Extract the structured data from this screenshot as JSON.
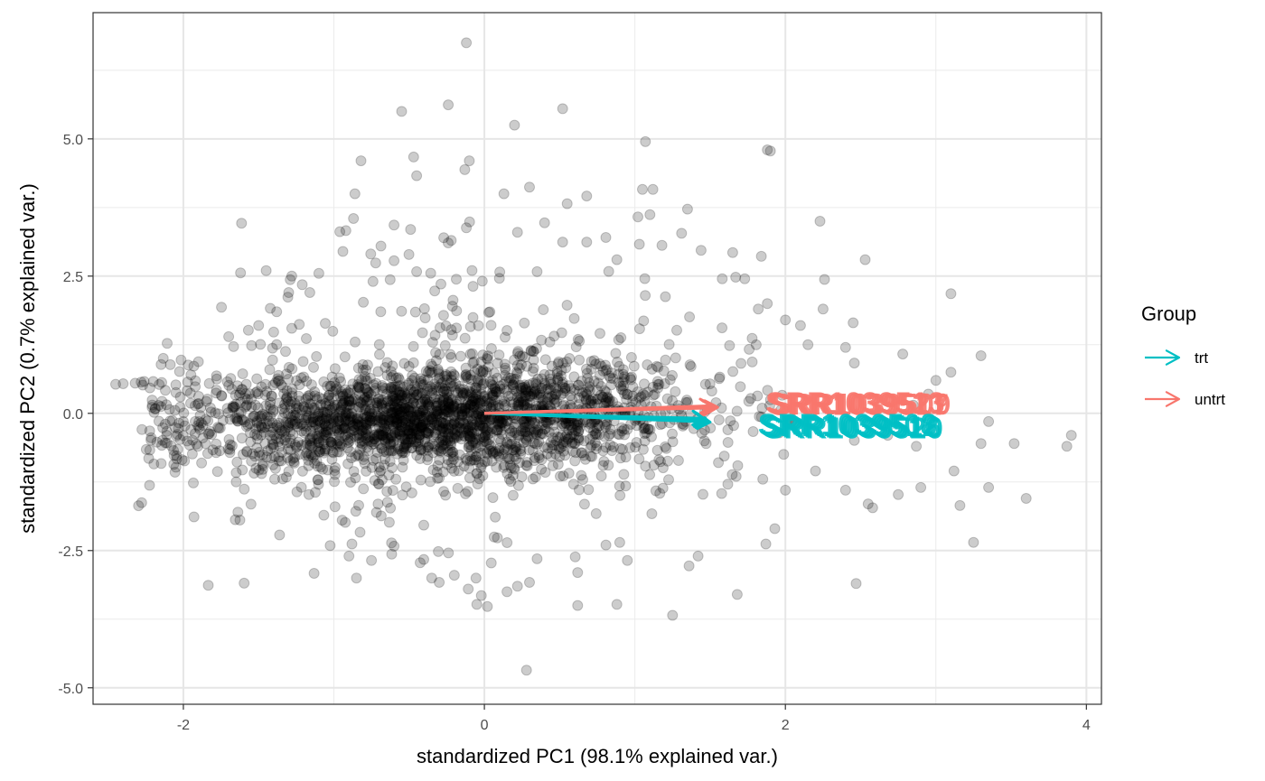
{
  "chart_data": {
    "type": "scatter",
    "subtype": "pca-biplot",
    "xlabel": "standardized PC1 (98.1% explained var.)",
    "ylabel": "standardized PC2 (0.7% explained var.)",
    "xlim": [
      -2.6,
      4.1
    ],
    "ylim": [
      -5.3,
      7.3
    ],
    "x_ticks": [
      -2,
      0,
      2,
      4
    ],
    "x_tick_labels": [
      "-2",
      "0",
      "2",
      "4"
    ],
    "y_ticks": [
      -5,
      -2.5,
      0,
      2.5,
      5
    ],
    "y_tick_labels": [
      "-5.0",
      "-2.5",
      "0.0",
      "2.5",
      "5.0"
    ],
    "grid": true,
    "legend": {
      "title": "Group",
      "placement": "right",
      "entries": [
        {
          "label": "trt",
          "color": "#00BFC4"
        },
        {
          "label": "untrt",
          "color": "#F8766D"
        }
      ]
    },
    "point_style": {
      "color": "#000000",
      "alpha": 0.2
    },
    "arrows": [
      {
        "group": "untrt",
        "label": "SRR1039513",
        "x": 1.52,
        "y": 0.14
      },
      {
        "group": "untrt",
        "label": "SRR1039521",
        "x": 1.53,
        "y": 0.12
      },
      {
        "group": "untrt",
        "label": "SRR1039517",
        "x": 1.54,
        "y": 0.1
      },
      {
        "group": "untrt",
        "label": "SRR1039509",
        "x": 1.55,
        "y": 0.11
      },
      {
        "group": "trt",
        "label": "SRR1039508",
        "x": 1.47,
        "y": -0.09
      },
      {
        "group": "trt",
        "label": "SRR1039512",
        "x": 1.48,
        "y": -0.12
      },
      {
        "group": "trt",
        "label": "SRR1039516",
        "x": 1.49,
        "y": -0.14
      },
      {
        "group": "trt",
        "label": "SRR1039520",
        "x": 1.5,
        "y": -0.16
      }
    ],
    "outlier_points": [
      [
        -0.12,
        6.75
      ],
      [
        -0.55,
        5.5
      ],
      [
        -0.24,
        5.62
      ],
      [
        0.2,
        5.25
      ],
      [
        0.52,
        5.55
      ],
      [
        1.07,
        4.95
      ],
      [
        1.88,
        4.8
      ],
      [
        1.9,
        4.78
      ],
      [
        -0.82,
        4.6
      ],
      [
        -0.47,
        4.67
      ],
      [
        -0.1,
        4.6
      ],
      [
        -0.45,
        4.33
      ],
      [
        -0.13,
        4.44
      ],
      [
        0.3,
        4.12
      ],
      [
        0.13,
        4.0
      ],
      [
        1.05,
        4.08
      ],
      [
        1.12,
        4.08
      ],
      [
        0.68,
        3.96
      ],
      [
        0.55,
        3.82
      ],
      [
        -0.86,
        4.0
      ],
      [
        -0.87,
        3.55
      ],
      [
        1.02,
        3.58
      ],
      [
        1.35,
        3.72
      ],
      [
        1.1,
        3.62
      ],
      [
        2.23,
        3.5
      ],
      [
        -0.6,
        3.43
      ],
      [
        -0.92,
        3.33
      ],
      [
        0.4,
        3.47
      ],
      [
        -0.12,
        3.38
      ],
      [
        0.22,
        3.3
      ],
      [
        -0.27,
        3.2
      ],
      [
        -0.22,
        3.15
      ],
      [
        0.52,
        3.12
      ],
      [
        0.68,
        3.12
      ],
      [
        1.31,
        3.28
      ],
      [
        1.03,
        3.08
      ],
      [
        1.18,
        3.06
      ],
      [
        1.84,
        2.86
      ],
      [
        2.53,
        2.8
      ],
      [
        0.88,
        2.8
      ],
      [
        1.65,
        2.93
      ],
      [
        1.44,
        2.97
      ],
      [
        2.26,
        2.44
      ],
      [
        -1.3,
        2.2
      ],
      [
        -1.16,
        2.2
      ],
      [
        3.1,
        2.18
      ],
      [
        0.1,
        2.46
      ],
      [
        0.35,
        2.58
      ],
      [
        -0.45,
        2.58
      ],
      [
        -0.6,
        2.78
      ],
      [
        -1.1,
        2.55
      ],
      [
        -1.28,
        2.5
      ],
      [
        -1.62,
        2.56
      ],
      [
        -1.45,
        2.6
      ],
      [
        -1.38,
        1.85
      ],
      [
        -1.23,
        1.62
      ],
      [
        -1.28,
        1.55
      ],
      [
        -1.5,
        1.6
      ],
      [
        -1.4,
        1.48
      ],
      [
        -2.45,
        0.53
      ],
      [
        -2.4,
        0.54
      ],
      [
        -2.32,
        0.55
      ],
      [
        -2.26,
        0.58
      ],
      [
        -2.2,
        0.58
      ],
      [
        -2.12,
        0.42
      ],
      [
        -2.05,
        0.52
      ],
      [
        -2.02,
        0.3
      ],
      [
        -1.95,
        0.7
      ],
      [
        -1.9,
        0.94
      ],
      [
        -2.0,
        -0.15
      ],
      [
        -1.95,
        -0.3
      ],
      [
        3.3,
        1.05
      ],
      [
        3.1,
        0.75
      ],
      [
        3.0,
        0.6
      ],
      [
        3.35,
        -0.15
      ],
      [
        3.52,
        -0.55
      ],
      [
        3.87,
        -0.6
      ],
      [
        3.9,
        -0.4
      ],
      [
        3.3,
        -0.55
      ],
      [
        3.12,
        -1.05
      ],
      [
        3.16,
        -1.68
      ],
      [
        3.25,
        -2.35
      ],
      [
        3.35,
        -1.35
      ],
      [
        3.6,
        -1.55
      ],
      [
        2.9,
        -1.35
      ],
      [
        2.75,
        -1.48
      ],
      [
        2.58,
        -1.72
      ],
      [
        2.55,
        -1.65
      ],
      [
        2.47,
        -3.1
      ],
      [
        2.4,
        -1.4
      ],
      [
        2.2,
        -1.05
      ],
      [
        2.0,
        -1.4
      ],
      [
        1.93,
        -2.1
      ],
      [
        1.87,
        -2.38
      ],
      [
        1.68,
        -3.3
      ],
      [
        1.42,
        -2.6
      ],
      [
        1.36,
        -2.78
      ],
      [
        1.25,
        -3.68
      ],
      [
        0.28,
        -4.68
      ],
      [
        0.22,
        -3.15
      ],
      [
        0.3,
        -3.08
      ],
      [
        -0.05,
        -3.48
      ],
      [
        0.02,
        -3.52
      ],
      [
        -0.02,
        -3.32
      ],
      [
        0.15,
        -3.25
      ],
      [
        0.62,
        -3.5
      ],
      [
        0.88,
        -3.48
      ],
      [
        0.62,
        -2.9
      ],
      [
        0.95,
        -2.68
      ],
      [
        0.35,
        -2.65
      ],
      [
        -0.3,
        -3.08
      ],
      [
        -0.35,
        -3.0
      ],
      [
        -0.2,
        -2.95
      ],
      [
        -0.85,
        -3.0
      ],
      [
        -0.75,
        -2.68
      ],
      [
        -0.6,
        -2.42
      ],
      [
        -0.88,
        -2.38
      ],
      [
        -0.9,
        -2.6
      ],
      [
        1.85,
        -1.2
      ],
      [
        2.15,
        1.25
      ],
      [
        2.1,
        1.6
      ],
      [
        2.0,
        1.7
      ],
      [
        2.45,
        1.65
      ],
      [
        2.25,
        1.9
      ],
      [
        2.4,
        1.2
      ],
      [
        2.78,
        1.08
      ],
      [
        2.95,
        0.35
      ],
      [
        2.85,
        0.15
      ],
      [
        2.87,
        -0.6
      ],
      [
        2.68,
        -0.4
      ],
      [
        1.82,
        1.9
      ],
      [
        1.88,
        2.0
      ],
      [
        1.67,
        2.48
      ],
      [
        1.73,
        2.45
      ],
      [
        1.58,
        2.45
      ]
    ]
  }
}
